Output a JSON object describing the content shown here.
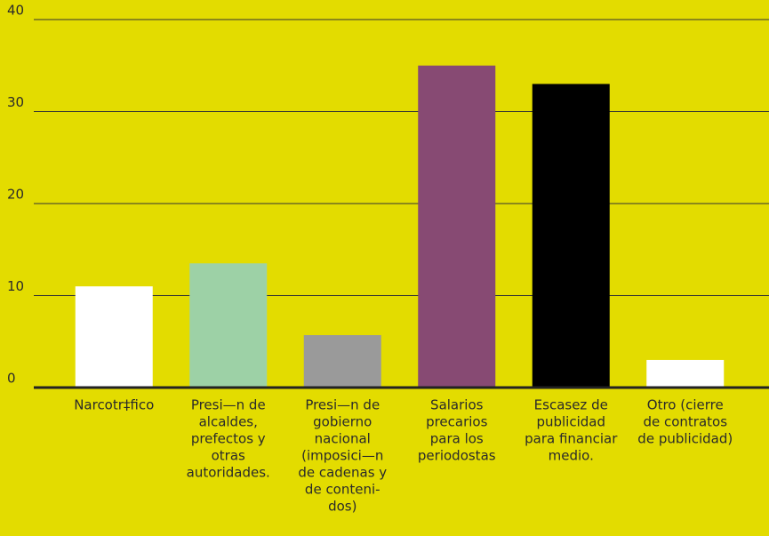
{
  "chart_data": {
    "type": "bar",
    "categories": [
      [
        "Narcotr‡fico"
      ],
      [
        "Presi—n de",
        "alcaldes,",
        "prefectos y",
        "otras",
        "autoridades."
      ],
      [
        "Presi—n de",
        "gobierno",
        "nacional",
        "(imposici—n",
        "de cadenas y",
        "de conteni-",
        "dos)"
      ],
      [
        "Salarios",
        "precarios",
        "para los",
        "periodostas"
      ],
      [
        "Escasez de",
        "publicidad",
        "para financiar",
        "medio."
      ],
      [
        "Otro (cierre",
        "de contratos",
        "de publicidad)"
      ]
    ],
    "values": [
      11,
      13.5,
      5.7,
      35,
      33,
      3
    ],
    "colors": [
      "#ffffff",
      "#9dd1a6",
      "#9a9a9a",
      "#874a73",
      "#000000",
      "#ffffff"
    ],
    "background": "#e3dc00",
    "ylim": [
      0,
      40
    ],
    "yticks": [
      0,
      10,
      20,
      30,
      40
    ],
    "grid": true
  }
}
